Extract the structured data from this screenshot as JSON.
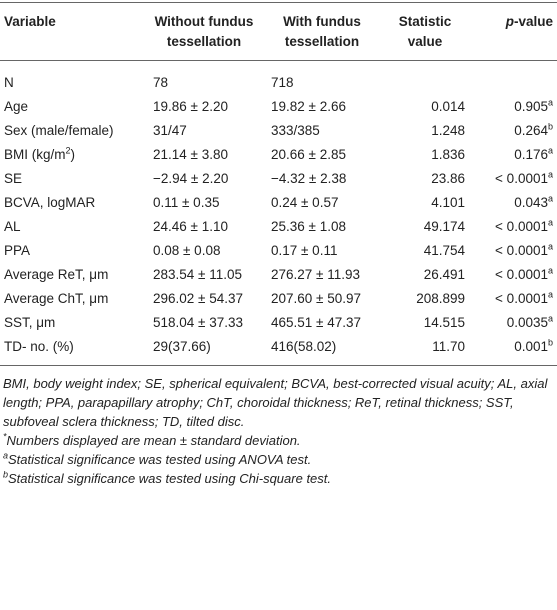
{
  "table": {
    "header": [
      "Variable",
      "Without fundus tessellation",
      "With fundus tessellation",
      "Statistic value",
      {
        "italic": "p",
        "text": "-value"
      }
    ],
    "rows": [
      [
        "N",
        "78",
        "718",
        "",
        ""
      ],
      [
        "Age",
        "19.86 ± 2.20",
        "19.82 ± 2.66",
        "0.014",
        {
          "text": "0.905",
          "sup": "a"
        }
      ],
      [
        "Sex (male/female)",
        "31/47",
        "333/385",
        "1.248",
        {
          "text": "0.264",
          "sup": "b"
        }
      ],
      [
        {
          "text": "BMI (kg/m",
          "sup": "2",
          "after": ")"
        },
        "21.14 ± 3.80",
        "20.66 ± 2.85",
        "1.836",
        {
          "text": "0.176",
          "sup": "a"
        }
      ],
      [
        "SE",
        "−2.94 ± 2.20",
        "−4.32 ± 2.38",
        "23.86",
        {
          "text": "< 0.0001",
          "sup": "a"
        }
      ],
      [
        "BCVA, logMAR",
        "0.11 ± 0.35",
        "0.24 ± 0.57",
        "4.101",
        {
          "text": "0.043",
          "sup": "a"
        }
      ],
      [
        "AL",
        "24.46 ± 1.10",
        "25.36 ± 1.08",
        "49.174",
        {
          "text": "< 0.0001",
          "sup": "a"
        }
      ],
      [
        "PPA",
        "0.08 ± 0.08",
        "0.17 ± 0.11",
        "41.754",
        {
          "text": "< 0.0001",
          "sup": "a"
        }
      ],
      [
        "Average ReT, μm",
        "283.54 ± 11.05",
        "276.27 ± 11.93",
        "26.491",
        {
          "text": "< 0.0001",
          "sup": "a"
        }
      ],
      [
        "Average ChT, μm",
        "296.02 ± 54.37",
        "207.60 ± 50.97",
        "208.899",
        {
          "text": "< 0.0001",
          "sup": "a"
        }
      ],
      [
        "SST, μm",
        "518.04 ± 37.33",
        "465.51 ± 47.37",
        "14.515",
        {
          "text": "0.0035",
          "sup": "a"
        }
      ],
      [
        "TD- no. (%)",
        "29(37.66)",
        "416(58.02)",
        "11.70",
        {
          "text": "0.001",
          "sup": "b"
        }
      ]
    ],
    "notes": [
      {
        "text": "BMI, body weight index; SE, spherical equivalent; BCVA, best-corrected visual acuity; AL, axial length; PPA, parapapillary atrophy; ChT, choroidal thickness; ReT, retinal thickness; SST, subfoveal sclera thickness; TD, tilted disc."
      },
      {
        "sup": "*",
        "text": "Numbers displayed are mean ± standard deviation."
      },
      {
        "sup": "a",
        "text": "Statistical significance was tested using ANOVA test."
      },
      {
        "sup": "b",
        "text": "Statistical significance was tested using Chi-square test."
      }
    ]
  }
}
